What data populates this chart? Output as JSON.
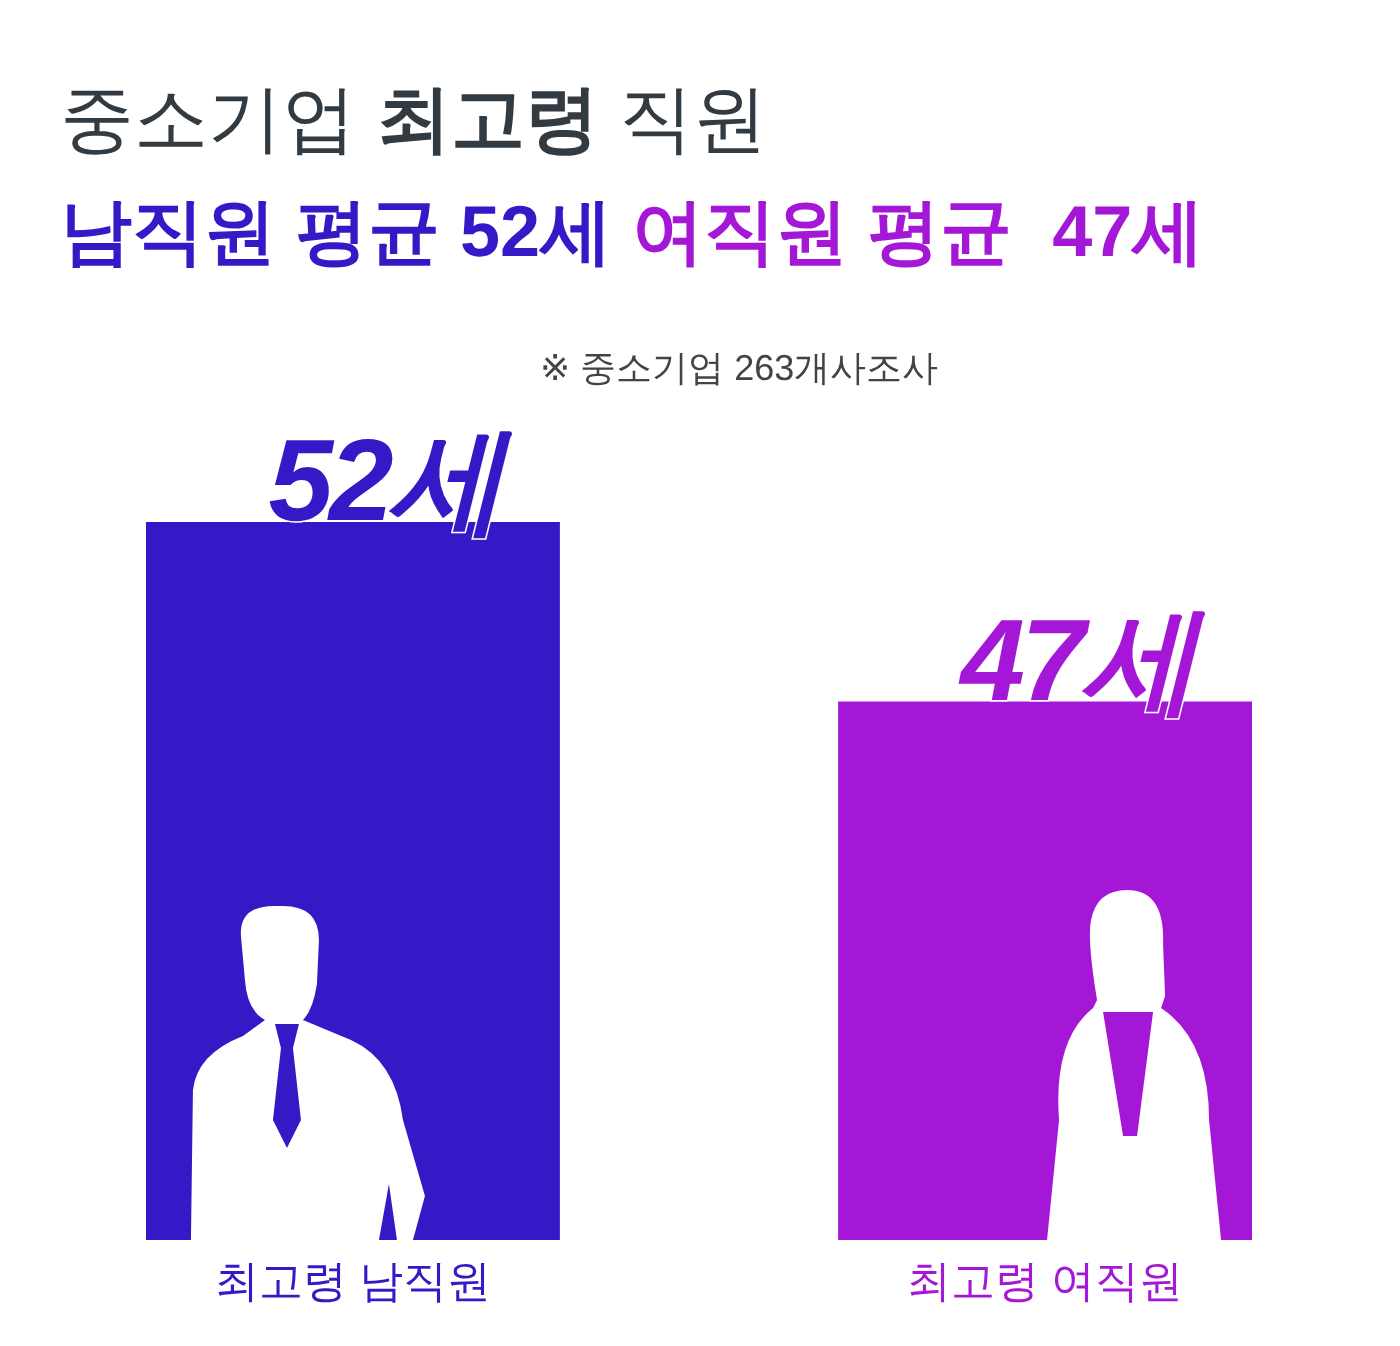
{
  "chart_data": {
    "type": "bar",
    "title": "중소기업 최고령 직원",
    "subtitle": "남직원 평균 52세 여직원 평균  47세",
    "annotations": [
      "※ 중소기업 263개사조사"
    ],
    "categories": [
      "최고령 남직원",
      "최고령 여직원"
    ],
    "values": [
      52,
      47
    ],
    "colors": [
      "#3619c6",
      "#a517d6"
    ],
    "value_labels": [
      "52세",
      "47세"
    ],
    "ylim": [
      32,
      52
    ],
    "tick_labels": "x"
  }
}
